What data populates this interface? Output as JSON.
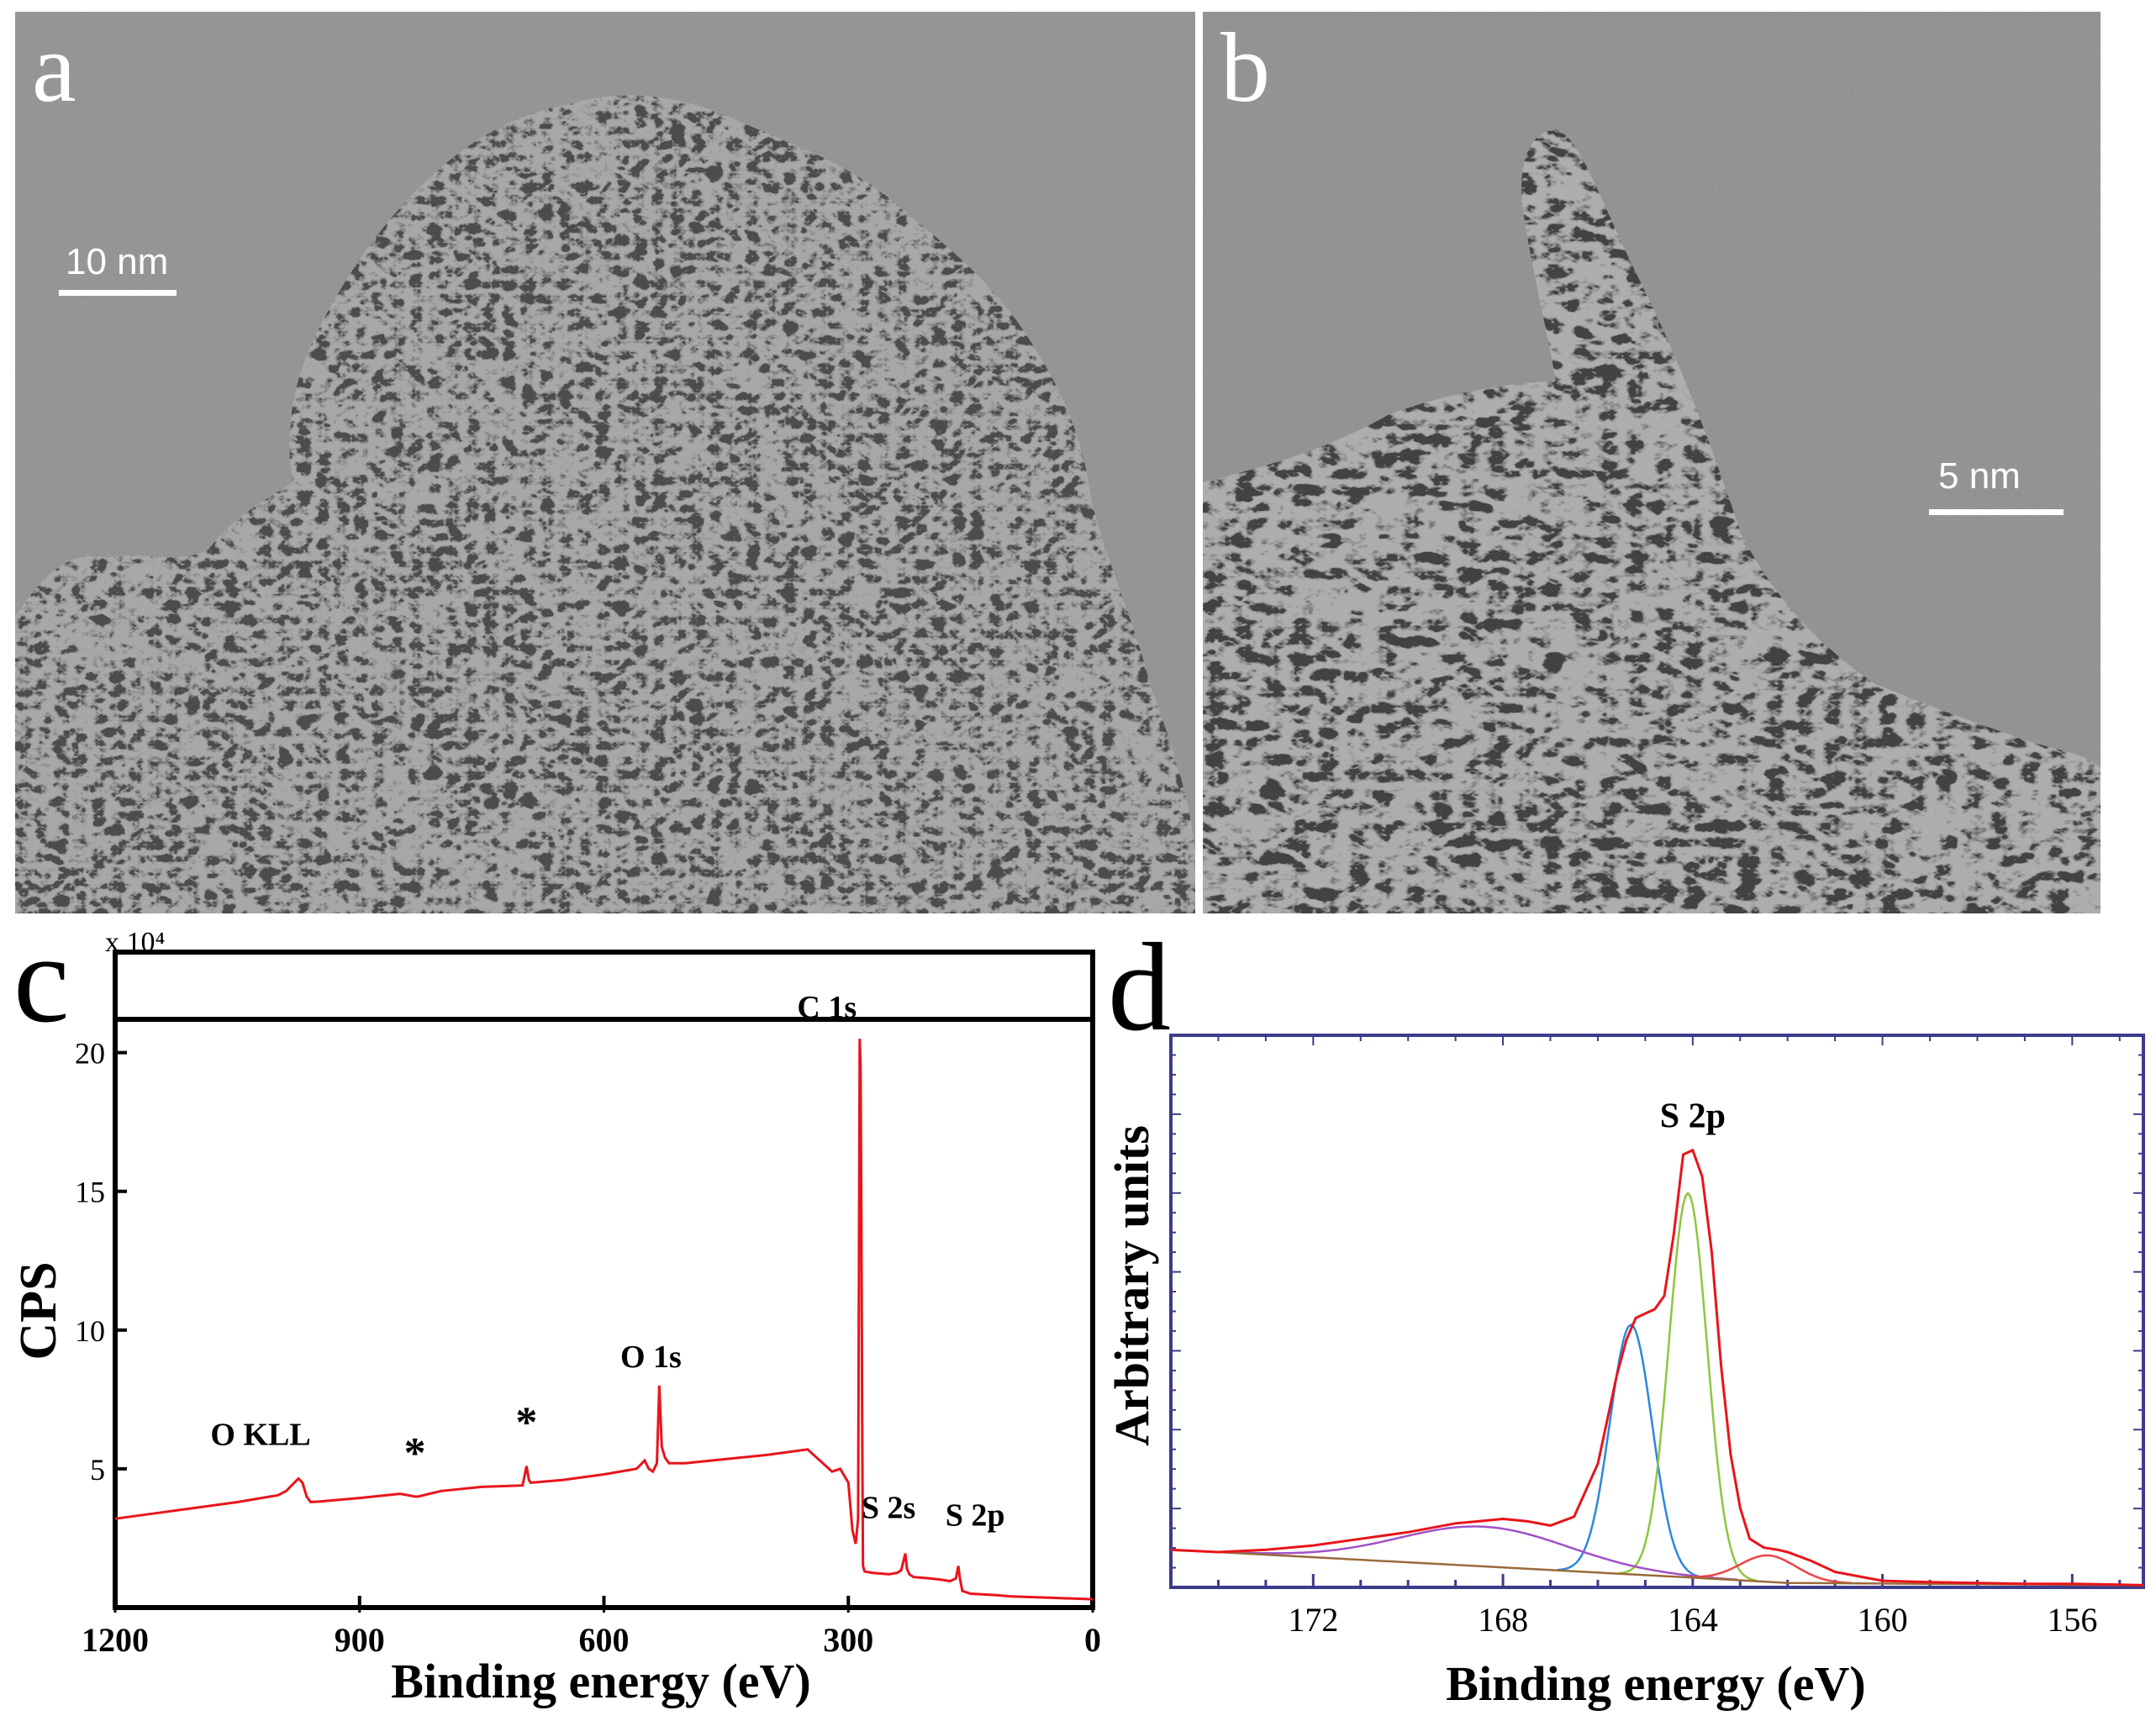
{
  "figure": {
    "panel_a": {
      "letter": "a",
      "scale_bar": "10 nm"
    },
    "panel_b": {
      "letter": "b",
      "scale_bar": "5 nm"
    },
    "panel_c": {
      "letter": "c"
    },
    "panel_d": {
      "letter": "d"
    }
  },
  "chart_data": [
    {
      "type": "line",
      "panel": "c",
      "xlabel": "Binding energy (eV)",
      "ylabel": "CPS",
      "y_multiplier_label": "x 10⁴",
      "xlim": [
        1200,
        0
      ],
      "ylim": [
        0,
        21.2
      ],
      "x_ticks": [
        1200,
        900,
        600,
        300,
        0
      ],
      "y_ticks": [
        5,
        10,
        15,
        20
      ],
      "color": "#e8141b",
      "series": [
        {
          "x": [
            1200,
            1150,
            1100,
            1050,
            1000,
            990,
            980,
            975,
            970,
            965,
            960,
            950,
            900,
            850,
            832,
            828,
            800,
            750,
            700,
            697,
            695,
            692,
            690,
            650,
            600,
            560,
            550,
            545,
            540,
            535,
            532,
            529,
            525,
            520,
            500,
            450,
            400,
            350,
            320,
            310,
            300,
            295,
            291,
            288,
            286,
            285,
            284,
            283,
            282,
            280,
            270,
            250,
            240,
            235,
            230,
            228,
            225,
            220,
            200,
            185,
            175,
            168,
            165,
            163,
            160,
            150,
            120,
            100,
            50,
            0
          ],
          "y": [
            3.2,
            3.4,
            3.6,
            3.8,
            4.05,
            4.2,
            4.5,
            4.65,
            4.5,
            4.0,
            3.8,
            3.82,
            3.95,
            4.1,
            4.0,
            4.0,
            4.2,
            4.35,
            4.4,
            4.8,
            5.1,
            4.6,
            4.5,
            4.6,
            4.8,
            5.0,
            5.3,
            5.0,
            4.9,
            5.2,
            8.0,
            5.8,
            5.4,
            5.2,
            5.2,
            5.35,
            5.5,
            5.7,
            4.9,
            5.0,
            4.5,
            2.8,
            2.3,
            3.2,
            20.5,
            19.5,
            14.0,
            7.0,
            1.5,
            1.3,
            1.25,
            1.2,
            1.25,
            1.35,
            1.95,
            1.4,
            1.2,
            1.1,
            1.05,
            1.0,
            0.95,
            1.05,
            1.5,
            1.05,
            0.6,
            0.5,
            0.45,
            0.4,
            0.35,
            0.3
          ]
        }
      ],
      "annotations": [
        {
          "label": "C 1s",
          "x": 285,
          "y": 20.5
        },
        {
          "label": "O 1s",
          "x": 532,
          "y": 8.0
        },
        {
          "label": "O KLL",
          "x": 975,
          "y": 4.65
        },
        {
          "label": "*",
          "x": 832,
          "y": 4.0
        },
        {
          "label": "*",
          "x": 695,
          "y": 5.1
        },
        {
          "label": "S 2s",
          "x": 228,
          "y": 1.95
        },
        {
          "label": "S 2p",
          "x": 165,
          "y": 1.5
        }
      ]
    },
    {
      "type": "line",
      "panel": "d",
      "xlabel": "Binding energy (eV)",
      "ylabel": "Arbitrary units",
      "xlim": [
        175,
        154.5
      ],
      "ylim": [
        0,
        1.25
      ],
      "x_ticks": [
        172,
        168,
        164,
        160,
        156
      ],
      "peak_label": {
        "label": "S 2p",
        "x": 164.0,
        "y": 1.0
      },
      "series": [
        {
          "role": "envelope",
          "color": "#e8141b",
          "x": [
            175,
            174,
            173,
            172,
            171,
            170,
            169,
            168.5,
            168,
            167.5,
            167,
            166.5,
            166,
            165.6,
            165.4,
            165.2,
            165.0,
            164.8,
            164.6,
            164.4,
            164.2,
            164.0,
            163.8,
            163.6,
            163.4,
            163.2,
            163.0,
            162.8,
            162.5,
            162.2,
            162.0,
            161.5,
            161.0,
            160.5,
            160,
            159,
            158,
            157,
            156,
            155,
            154.5
          ],
          "y": [
            0.085,
            0.08,
            0.085,
            0.095,
            0.11,
            0.125,
            0.145,
            0.15,
            0.155,
            0.15,
            0.14,
            0.16,
            0.28,
            0.48,
            0.56,
            0.61,
            0.62,
            0.63,
            0.66,
            0.8,
            0.98,
            0.99,
            0.93,
            0.76,
            0.5,
            0.3,
            0.18,
            0.11,
            0.09,
            0.085,
            0.08,
            0.06,
            0.035,
            0.025,
            0.015,
            0.012,
            0.01,
            0.008,
            0.008,
            0.006,
            0.005
          ]
        },
        {
          "role": "component",
          "color": "#2e86de",
          "center": 165.3,
          "height": 0.565,
          "fwhm": 1.05
        },
        {
          "role": "component",
          "color": "#8dc63f",
          "center": 164.1,
          "height": 0.87,
          "fwhm": 0.95
        },
        {
          "role": "component",
          "color": "#a050c8",
          "center": 168.4,
          "height": 0.09,
          "fwhm": 4.2
        },
        {
          "role": "component",
          "color": "#ee4444",
          "center": 162.4,
          "height": 0.06,
          "fwhm": 1.4
        },
        {
          "role": "baseline",
          "color": "#9a6a3a",
          "x": [
            175,
            174,
            168,
            164,
            162,
            154.5
          ],
          "y": [
            0.085,
            0.08,
            0.045,
            0.022,
            0.01,
            0.005
          ]
        }
      ]
    }
  ]
}
